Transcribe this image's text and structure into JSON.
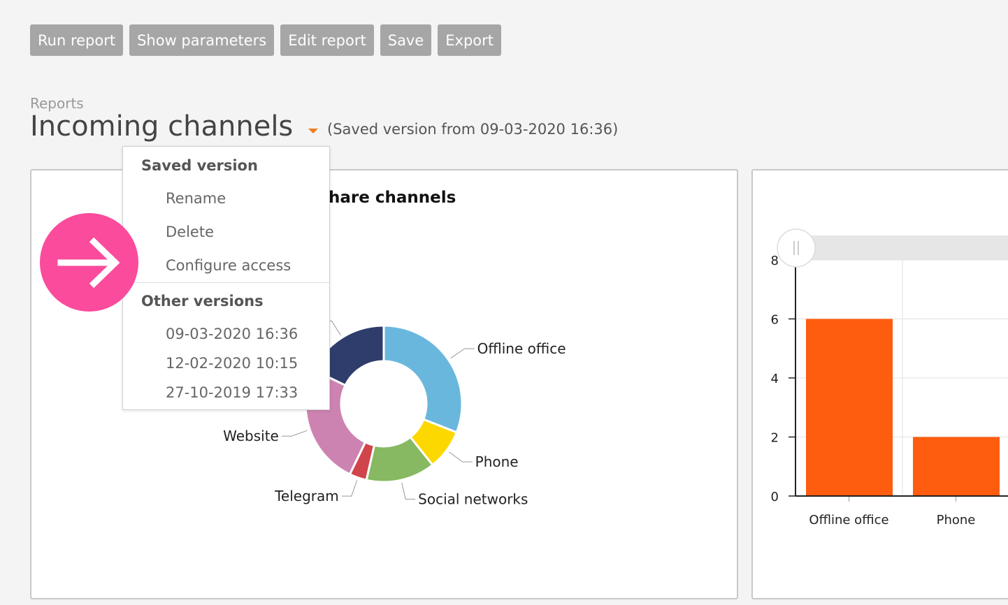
{
  "toolbar": {
    "buttons": [
      "Run report",
      "Show parameters",
      "Edit report",
      "Save",
      "Export"
    ]
  },
  "breadcrumb": "Reports",
  "page_title": "Incoming channels",
  "saved_note": "(Saved version from 09-03-2020 16:36)",
  "left_panel": {
    "title_visible": "hare channels"
  },
  "menu": {
    "saved_header": "Saved version",
    "saved_items": [
      "Rename",
      "Delete",
      "Configure access"
    ],
    "other_header": "Other versions",
    "other_items": [
      "09-03-2020 16:36",
      "12-02-2020 10:15",
      "27-10-2019 17:33"
    ]
  },
  "icons": {
    "overlay": "arrow-right-icon",
    "slider": "drag-handle-icon"
  },
  "colors": {
    "accent": "#f07d1a",
    "overlay": "#fb4b9c",
    "bar": "#fe5c0e",
    "button": "#a6a6a6"
  },
  "chart_data": [
    {
      "type": "pie",
      "style": "donut",
      "categories": [
        "Offline office",
        "Phone",
        "Social networks",
        "Telegram",
        "Website",
        ""
      ],
      "values": [
        26,
        7,
        12,
        3,
        21,
        15
      ],
      "colors": [
        "#6ab7de",
        "#fdd700",
        "#86b962",
        "#d0454b",
        "#cd83b1",
        "#2f3d6c"
      ],
      "legend": "none"
    },
    {
      "type": "bar",
      "categories": [
        "Offline office",
        "Phone"
      ],
      "values": [
        6,
        2
      ],
      "ylim": [
        0,
        8
      ],
      "yticks": [
        0,
        2,
        4,
        6,
        8
      ],
      "grid": true,
      "legend": "none"
    }
  ]
}
